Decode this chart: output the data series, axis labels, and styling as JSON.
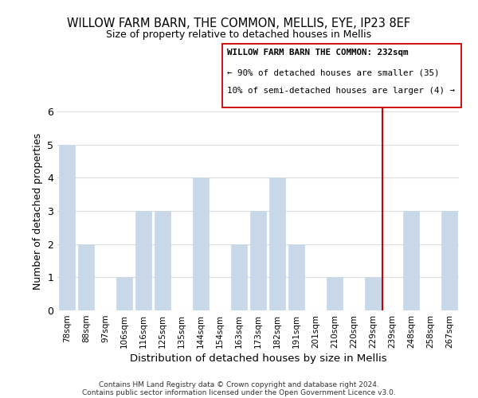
{
  "title": "WILLOW FARM BARN, THE COMMON, MELLIS, EYE, IP23 8EF",
  "subtitle": "Size of property relative to detached houses in Mellis",
  "xlabel": "Distribution of detached houses by size in Mellis",
  "ylabel": "Number of detached properties",
  "categories": [
    "78sqm",
    "88sqm",
    "97sqm",
    "106sqm",
    "116sqm",
    "125sqm",
    "135sqm",
    "144sqm",
    "154sqm",
    "163sqm",
    "173sqm",
    "182sqm",
    "191sqm",
    "201sqm",
    "210sqm",
    "220sqm",
    "229sqm",
    "239sqm",
    "248sqm",
    "258sqm",
    "267sqm"
  ],
  "values": [
    5,
    2,
    0,
    1,
    3,
    3,
    0,
    4,
    0,
    2,
    3,
    4,
    2,
    0,
    1,
    0,
    1,
    0,
    3,
    0,
    3
  ],
  "bar_color": "#c8d8e8",
  "bar_edge_color": "#c8d8e8",
  "ylim": [
    0,
    6
  ],
  "yticks": [
    0,
    1,
    2,
    3,
    4,
    5,
    6
  ],
  "vline_x_index": 16,
  "vline_color": "#cc0000",
  "annotation_title": "WILLOW FARM BARN THE COMMON: 232sqm",
  "annotation_line1": "← 90% of detached houses are smaller (35)",
  "annotation_line2": "10% of semi-detached houses are larger (4) →",
  "footer1": "Contains HM Land Registry data © Crown copyright and database right 2024.",
  "footer2": "Contains public sector information licensed under the Open Government Licence v3.0.",
  "background_color": "#ffffff",
  "grid_color": "#dddddd"
}
